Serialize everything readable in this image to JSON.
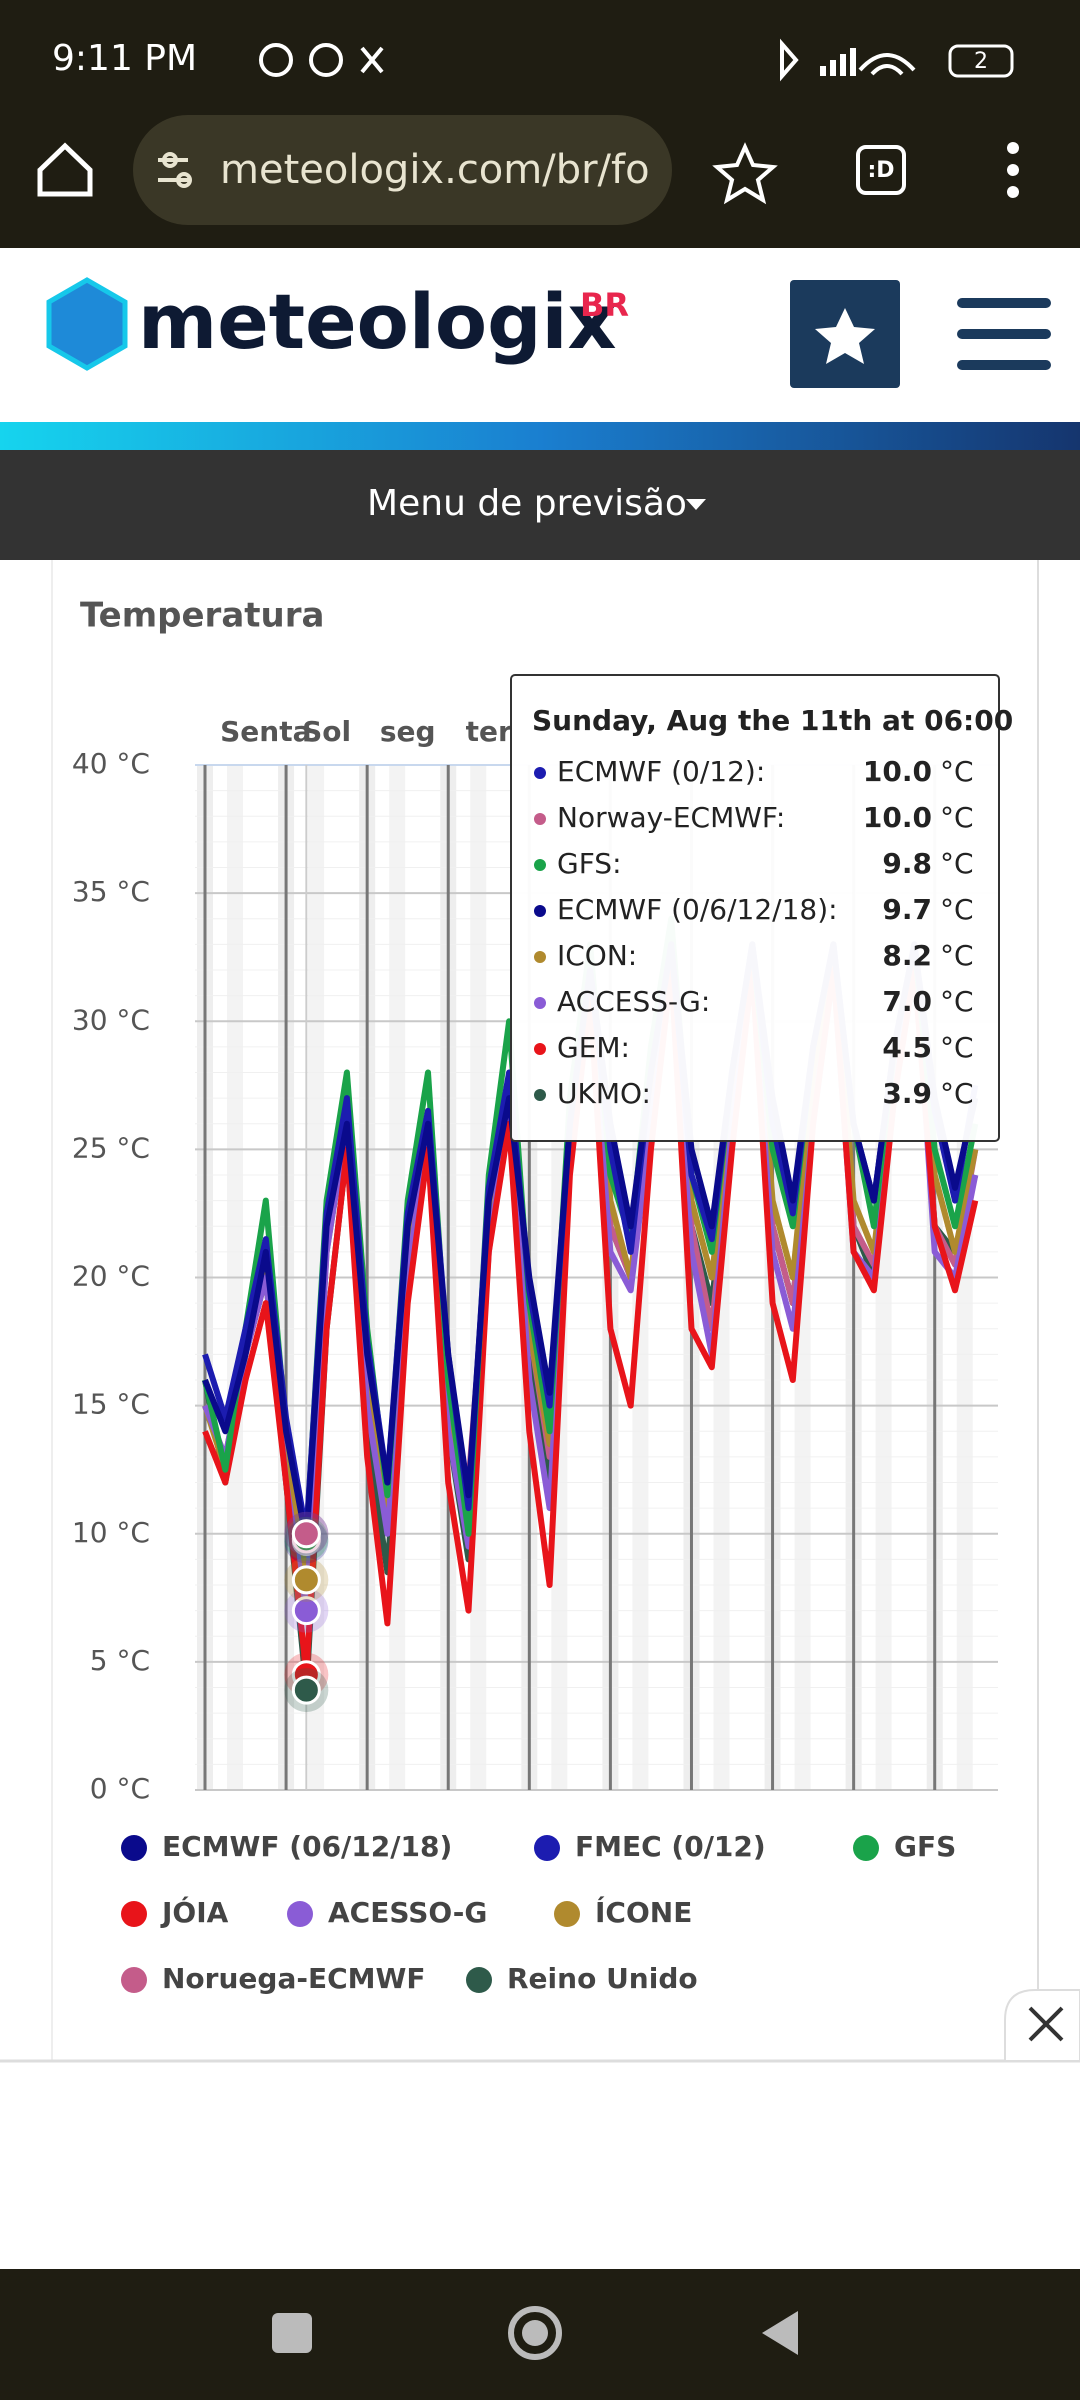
{
  "status_bar": {
    "time": "9:11 PM",
    "battery": "2"
  },
  "browser": {
    "url": "meteologix.com/br/fo",
    "tab_icon": ":D"
  },
  "site_header": {
    "logo": "meteologix",
    "region": "BR"
  },
  "menu": {
    "label": "Menu de previsão"
  },
  "chart_data": {
    "type": "line",
    "title": "Temperatura",
    "categories": [
      null,
      null,
      null,
      "Senta",
      null,
      null,
      "Sol",
      null,
      null,
      null,
      "seg",
      null,
      null,
      null,
      "ter",
      null,
      null,
      null,
      null,
      null,
      null,
      null,
      null,
      null,
      null,
      null,
      null,
      null,
      null,
      null,
      null,
      null,
      null,
      null,
      null,
      null,
      null,
      null,
      null
    ],
    "ylim": [
      0,
      40
    ],
    "yticks": [
      {
        "value": 0,
        "label": "0 °C"
      },
      {
        "value": 5,
        "label": "5 °C"
      },
      {
        "value": 10,
        "label": "10 °C"
      },
      {
        "value": 15,
        "label": "15 °C"
      },
      {
        "value": 20,
        "label": "20 °C"
      },
      {
        "value": 25,
        "label": "25 °C"
      },
      {
        "value": 30,
        "label": "30 °C"
      },
      {
        "value": 35,
        "label": "35 °C"
      },
      {
        "value": 40,
        "label": "40 °C"
      }
    ],
    "grid": true,
    "series": [
      {
        "name": "ECMWF (06/12/18)",
        "color": "#0a0a8c",
        "values": [
          16,
          14,
          17,
          21,
          14,
          9.7,
          22,
          26,
          17,
          12,
          22,
          26,
          17,
          11.5,
          23,
          27,
          20,
          15.5,
          26,
          32,
          26,
          22,
          28,
          33,
          25,
          22,
          28,
          33,
          27,
          23,
          29,
          33,
          26,
          23,
          29,
          33,
          27,
          23.5,
          27
        ]
      },
      {
        "name": "FMEC (0/12)",
        "color": "#1c1cb0",
        "values": [
          17,
          14.5,
          18,
          21.5,
          14.5,
          10,
          22.5,
          27,
          17.5,
          12,
          22.5,
          26.5,
          17,
          11,
          23.5,
          28,
          19.5,
          15,
          26,
          32,
          25,
          21,
          28,
          33,
          24,
          21.5,
          28,
          33,
          26,
          22.5,
          29,
          33,
          26,
          23,
          29,
          33,
          26.5,
          23,
          27.5
        ]
      },
      {
        "name": "GFS",
        "color": "#1aa34a",
        "values": [
          16,
          12.5,
          18,
          23,
          14,
          9.8,
          23,
          28,
          18,
          11.5,
          23,
          28,
          16,
          10,
          24,
          30,
          19,
          14,
          27,
          33,
          24,
          21.5,
          29,
          34,
          24,
          21,
          28,
          33,
          25,
          22,
          29,
          33,
          26,
          22,
          29,
          33,
          25,
          22,
          26
        ]
      },
      {
        "name": "JÓIA",
        "color": "#e8141a",
        "values": [
          14,
          12,
          16,
          19,
          12,
          4.5,
          18,
          25,
          13,
          6.5,
          19,
          25,
          12,
          7,
          21,
          26,
          14,
          8,
          24,
          31,
          18,
          15,
          25,
          32,
          18,
          16.5,
          25,
          32,
          19,
          16,
          26,
          32,
          21,
          19.5,
          27,
          32,
          22,
          19.5,
          23
        ]
      },
      {
        "name": "ACESSO-G",
        "color": "#8a5cd6",
        "values": [
          15,
          13,
          17,
          20,
          12,
          7,
          21,
          26,
          15,
          10,
          20,
          26,
          14,
          9.5,
          21,
          27,
          16,
          11,
          25,
          31,
          21,
          19.5,
          26,
          32,
          21,
          17,
          26,
          32,
          21,
          18,
          26,
          32,
          21,
          20,
          27,
          33,
          21,
          20,
          24
        ]
      },
      {
        "name": "ÍCONE",
        "color": "#b08a2e",
        "values": [
          15,
          12.5,
          17,
          20.5,
          13,
          8.2,
          21,
          26,
          16,
          11,
          21,
          26.5,
          15,
          11,
          22,
          27,
          18,
          13.5,
          25,
          32,
          23,
          20,
          27,
          33,
          23,
          20,
          27,
          33,
          23,
          20,
          28,
          33,
          23,
          21,
          28,
          33,
          24,
          21,
          25
        ]
      },
      {
        "name": "Noruega-ECMWF",
        "color": "#c45c8a",
        "values": [
          15,
          13,
          17,
          20,
          13,
          10,
          22,
          26,
          16,
          11,
          21,
          26,
          15,
          12,
          22,
          27,
          18,
          13,
          25,
          32,
          22,
          20,
          27,
          33,
          22,
          18,
          26,
          32,
          22,
          19,
          27,
          33,
          22,
          20.5,
          27,
          33,
          22,
          20.5,
          25
        ]
      },
      {
        "name": "Reino Unido",
        "color": "#2e5a4a",
        "values": [
          16,
          12,
          17,
          20,
          12,
          3.9,
          18,
          25,
          14,
          8.5,
          20,
          26,
          14,
          9,
          22,
          27,
          17,
          12,
          25,
          31,
          22,
          20,
          26,
          32,
          22,
          19,
          26,
          32,
          22,
          19,
          27,
          33,
          22,
          20,
          27,
          33,
          22,
          21,
          24
        ]
      }
    ],
    "tooltip": {
      "title": "Sunday, Aug the 11th at 06:00",
      "rows": [
        {
          "name": "ECMWF (0/12):",
          "value": "10.0",
          "unit": "°C",
          "color": "#1c1cb0"
        },
        {
          "name": "Norway-ECMWF:",
          "value": "10.0",
          "unit": "°C",
          "color": "#c45c8a"
        },
        {
          "name": "GFS:",
          "value": "9.8",
          "unit": "°C",
          "color": "#1aa34a"
        },
        {
          "name": "ECMWF (0/6/12/18):",
          "value": "9.7",
          "unit": "°C",
          "color": "#0a0a8c"
        },
        {
          "name": "ICON:",
          "value": "8.2",
          "unit": "°C",
          "color": "#b08a2e"
        },
        {
          "name": "ACCESS-G:",
          "value": "7.0",
          "unit": "°C",
          "color": "#8a5cd6"
        },
        {
          "name": "GEM:",
          "value": "4.5",
          "unit": "°C",
          "color": "#e8141a"
        },
        {
          "name": "UKMO:",
          "value": "3.9",
          "unit": "°C",
          "color": "#2e5a4a"
        }
      ]
    }
  }
}
